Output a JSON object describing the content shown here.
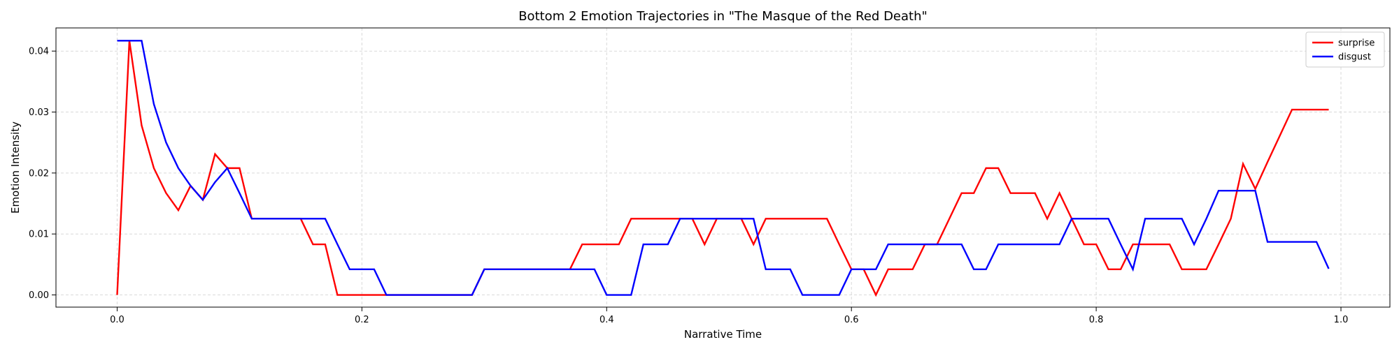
{
  "chart_data": {
    "type": "line",
    "title": "Bottom 2 Emotion Trajectories in \"The Masque of the Red Death\"",
    "xlabel": "Narrative Time",
    "ylabel": "Emotion Intensity",
    "xlim": [
      -0.05,
      1.04
    ],
    "ylim": [
      -0.002,
      0.0438
    ],
    "x_ticks": [
      0.0,
      0.2,
      0.4,
      0.6,
      0.8,
      1.0
    ],
    "x_tick_labels": [
      "0.0",
      "0.2",
      "0.4",
      "0.6",
      "0.8",
      "1.0"
    ],
    "y_ticks": [
      0.0,
      0.01,
      0.02,
      0.03,
      0.04
    ],
    "y_tick_labels": [
      "0.00",
      "0.01",
      "0.02",
      "0.03",
      "0.04"
    ],
    "grid": true,
    "legend_position": "top-right",
    "x": [
      0.0,
      0.01,
      0.02,
      0.03,
      0.04,
      0.05,
      0.06,
      0.07,
      0.08,
      0.09,
      0.1,
      0.11,
      0.12,
      0.13,
      0.14,
      0.15,
      0.16,
      0.17,
      0.18,
      0.19,
      0.2,
      0.21,
      0.22,
      0.23,
      0.24,
      0.25,
      0.26,
      0.27,
      0.28,
      0.29,
      0.3,
      0.31,
      0.32,
      0.33,
      0.34,
      0.35,
      0.36,
      0.37,
      0.38,
      0.39,
      0.4,
      0.41,
      0.42,
      0.43,
      0.44,
      0.45,
      0.46,
      0.47,
      0.48,
      0.49,
      0.5,
      0.51,
      0.52,
      0.53,
      0.54,
      0.55,
      0.56,
      0.57,
      0.58,
      0.59,
      0.6,
      0.61,
      0.62,
      0.63,
      0.64,
      0.65,
      0.66,
      0.67,
      0.68,
      0.69,
      0.7,
      0.71,
      0.72,
      0.73,
      0.74,
      0.75,
      0.76,
      0.77,
      0.78,
      0.79,
      0.8,
      0.81,
      0.82,
      0.83,
      0.84,
      0.85,
      0.86,
      0.87,
      0.88,
      0.89,
      0.9,
      0.91,
      0.92,
      0.93,
      0.94,
      0.95,
      0.96,
      0.97,
      0.98,
      0.99
    ],
    "series": [
      {
        "name": "surprise",
        "color": "#ff0000",
        "values": [
          0.0,
          0.0417,
          0.0278,
          0.0208,
          0.0167,
          0.0139,
          0.0179,
          0.0156,
          0.0231,
          0.0208,
          0.0208,
          0.0125,
          0.0125,
          0.0125,
          0.0125,
          0.0125,
          0.0083,
          0.0083,
          0.0,
          0.0,
          0.0,
          0.0,
          0.0,
          0.0,
          0.0,
          0.0,
          0.0,
          0.0,
          0.0,
          0.0,
          0.0042,
          0.0042,
          0.0042,
          0.0042,
          0.0042,
          0.0042,
          0.0042,
          0.0042,
          0.0083,
          0.0083,
          0.0083,
          0.0083,
          0.0125,
          0.0125,
          0.0125,
          0.0125,
          0.0125,
          0.0125,
          0.0083,
          0.0125,
          0.0125,
          0.0125,
          0.0083,
          0.0125,
          0.0125,
          0.0125,
          0.0125,
          0.0125,
          0.0125,
          0.0083,
          0.0042,
          0.0042,
          0.0,
          0.0042,
          0.0042,
          0.0042,
          0.0083,
          0.0083,
          0.0125,
          0.0167,
          0.0167,
          0.0208,
          0.0208,
          0.0167,
          0.0167,
          0.0167,
          0.0125,
          0.0167,
          0.0125,
          0.0083,
          0.0083,
          0.0042,
          0.0042,
          0.0083,
          0.0083,
          0.0083,
          0.0083,
          0.0042,
          0.0042,
          0.0042,
          0.0083,
          0.0125,
          0.0215,
          0.0174,
          0.0218,
          0.0261,
          0.0304,
          0.0304,
          0.0304,
          0.0304
        ]
      },
      {
        "name": "disgust",
        "color": "#0000ff",
        "values": [
          0.0417,
          0.0417,
          0.0417,
          0.0313,
          0.025,
          0.0208,
          0.0179,
          0.0156,
          0.0185,
          0.0208,
          0.0167,
          0.0125,
          0.0125,
          0.0125,
          0.0125,
          0.0125,
          0.0125,
          0.0125,
          0.0083,
          0.0042,
          0.0042,
          0.0042,
          0.0,
          0.0,
          0.0,
          0.0,
          0.0,
          0.0,
          0.0,
          0.0,
          0.0042,
          0.0042,
          0.0042,
          0.0042,
          0.0042,
          0.0042,
          0.0042,
          0.0042,
          0.0042,
          0.0042,
          0.0,
          0.0,
          0.0,
          0.0083,
          0.0083,
          0.0083,
          0.0125,
          0.0125,
          0.0125,
          0.0125,
          0.0125,
          0.0125,
          0.0125,
          0.0042,
          0.0042,
          0.0042,
          0.0,
          0.0,
          0.0,
          0.0,
          0.0042,
          0.0042,
          0.0042,
          0.0083,
          0.0083,
          0.0083,
          0.0083,
          0.0083,
          0.0083,
          0.0083,
          0.0042,
          0.0042,
          0.0083,
          0.0083,
          0.0083,
          0.0083,
          0.0083,
          0.0083,
          0.0125,
          0.0125,
          0.0125,
          0.0125,
          0.0083,
          0.0042,
          0.0125,
          0.0125,
          0.0125,
          0.0125,
          0.0083,
          0.0125,
          0.0171,
          0.0171,
          0.0171,
          0.0171,
          0.0087,
          0.0087,
          0.0087,
          0.0087,
          0.0087,
          0.0043
        ]
      }
    ]
  }
}
